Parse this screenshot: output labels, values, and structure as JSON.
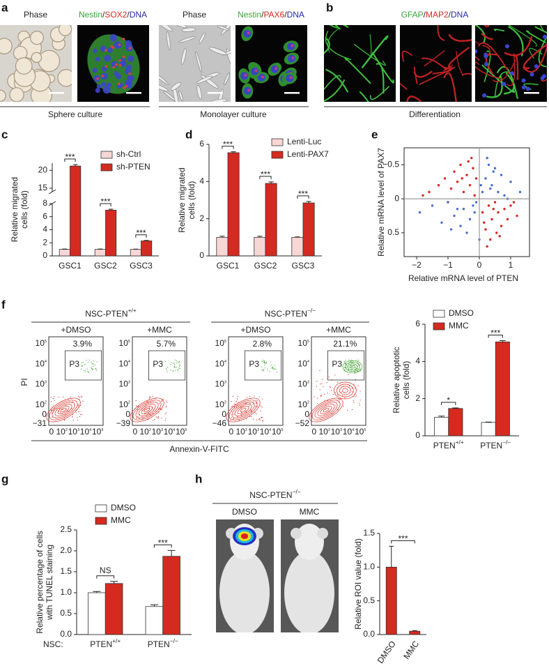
{
  "panel_labels": [
    "a",
    "b",
    "c",
    "d",
    "e",
    "f",
    "g",
    "h"
  ],
  "panel_a": {
    "images": [
      {
        "label": [
          {
            "text": "Phase",
            "color": "#222222"
          }
        ]
      },
      {
        "label": [
          {
            "text": "Nestin",
            "color": "#3aa33a"
          },
          {
            "text": "/",
            "color": "#222222"
          },
          {
            "text": "SOX2",
            "color": "#d42a20"
          },
          {
            "text": "/",
            "color": "#222222"
          },
          {
            "text": "DNA",
            "color": "#2a2aa8"
          }
        ]
      },
      {
        "label": [
          {
            "text": "Phase",
            "color": "#222222"
          }
        ]
      },
      {
        "label": [
          {
            "text": "Nestin",
            "color": "#3aa33a"
          },
          {
            "text": "/",
            "color": "#222222"
          },
          {
            "text": "PAX6",
            "color": "#d42a20"
          },
          {
            "text": "/",
            "color": "#222222"
          },
          {
            "text": "DNA",
            "color": "#2a2aa8"
          }
        ]
      }
    ],
    "captions": [
      "Sphere culture",
      "Monolayer culture"
    ]
  },
  "panel_b": {
    "label": [
      {
        "text": "GFAP",
        "color": "#3aa33a"
      },
      {
        "text": "/",
        "color": "#222222"
      },
      {
        "text": "MAP2",
        "color": "#d42a20"
      },
      {
        "text": "/",
        "color": "#222222"
      },
      {
        "text": "DNA",
        "color": "#2a2aa8"
      }
    ],
    "caption": "Differentiation"
  },
  "chart_data": [
    {
      "type": "bar",
      "ylabel": [
        "Relative migrated",
        "cells (fold)"
      ],
      "categories": [
        "GSC1",
        "GSC2",
        "GSC3"
      ],
      "series": [
        {
          "name": "sh-Ctrl",
          "color": "#f7d6d6",
          "values": [
            1,
            1,
            1
          ],
          "errors": [
            0.05,
            0.06,
            0.04
          ]
        },
        {
          "name": "sh-PTEN",
          "color": "#d42a20",
          "values": [
            21.2,
            7.0,
            2.3
          ],
          "errors": [
            0.4,
            0.15,
            0.08
          ]
        }
      ],
      "significance": [
        "***",
        "***",
        "***"
      ],
      "ylim": [
        0,
        22
      ],
      "y_break": [
        8,
        14
      ],
      "yticks": [
        0,
        2,
        4,
        6,
        8,
        15,
        20
      ]
    },
    {
      "type": "bar",
      "ylabel": [
        "Relative migrated",
        "cells (fold)"
      ],
      "categories": [
        "GSC1",
        "GSC2",
        "GSC3"
      ],
      "series": [
        {
          "name": "Lenti-Luc",
          "color": "#f7d6d6",
          "values": [
            1.0,
            1.0,
            1.0
          ],
          "errors": [
            0.06,
            0.06,
            0.02
          ]
        },
        {
          "name": "Lenti-PAX7",
          "color": "#d42a20",
          "values": [
            5.55,
            3.9,
            2.85
          ],
          "errors": [
            0.05,
            0.08,
            0.08
          ]
        }
      ],
      "significance": [
        "***",
        "***",
        "***"
      ],
      "ylim": [
        0,
        6
      ],
      "yticks": [
        0,
        2,
        4,
        6
      ]
    },
    {
      "type": "scatter",
      "xlabel": "Relative mRNA level of PTEN",
      "ylabel": [
        "Relative mRNA level of PAX7"
      ],
      "xlim": [
        -2.4,
        1.6
      ],
      "ylim": [
        0.85,
        -0.75
      ],
      "xticks": [
        {
          "value": -2,
          "label": "−2"
        },
        {
          "value": -1,
          "label": "−1"
        },
        0,
        1
      ],
      "yticks": [
        {
          "value": -0.5,
          "label": "−0.5"
        },
        0,
        0.5
      ],
      "zero_lines": true,
      "series": [
        {
          "color": "#d42a20",
          "x": [
            -1.6,
            -1.3,
            -1.1,
            -0.9,
            -0.8,
            -0.7,
            -0.6,
            -0.5,
            -0.4,
            -0.35,
            -0.3,
            -0.2,
            -0.15,
            -0.1,
            -1.8,
            -0.55,
            -0.25,
            -1.0,
            0.1,
            0.2,
            0.3,
            0.35,
            0.4,
            0.5,
            0.55,
            0.6,
            0.7,
            0.8,
            0.9,
            1.0,
            1.2,
            0.25,
            0.45,
            0.15,
            0.65,
            1.1
          ],
          "y": [
            -0.1,
            -0.2,
            -0.3,
            -0.15,
            -0.4,
            -0.25,
            -0.5,
            -0.1,
            -0.35,
            -0.55,
            -0.2,
            -0.45,
            -0.05,
            -0.3,
            -0.05,
            -0.3,
            -0.6,
            0.05,
            0.2,
            0.45,
            0.1,
            0.6,
            0.3,
            0.05,
            0.5,
            0.2,
            0.4,
            0.15,
            0.3,
            0.1,
            0.25,
            0.7,
            0.15,
            0.35,
            0.55,
            0.05
          ]
        },
        {
          "color": "#4a6fd0",
          "x": [
            -1.9,
            -1.5,
            -1.2,
            -1.0,
            -0.8,
            -0.6,
            -0.5,
            -0.3,
            -0.2,
            -0.1,
            0.0,
            0.1,
            0.2,
            0.3,
            0.4,
            0.5,
            0.6,
            0.7,
            0.8,
            1.0,
            1.3,
            -0.4,
            -0.7,
            0.25,
            0.45,
            0.9,
            -0.15,
            0.05,
            0.35,
            -0.9
          ],
          "y": [
            0.2,
            0.1,
            0.35,
            0.05,
            0.25,
            0.4,
            0.15,
            0.3,
            0.1,
            0.05,
            0.6,
            -0.1,
            -0.3,
            -0.5,
            -0.2,
            -0.45,
            -0.1,
            -0.35,
            -0.05,
            -0.25,
            -0.1,
            0.5,
            0.15,
            -0.6,
            -0.4,
            0.0,
            0.2,
            -0.2,
            -0.15,
            0.45
          ]
        }
      ]
    },
    {
      "type": "bar",
      "ylabel": [
        "Relative apoptotic",
        "cells (fold)"
      ],
      "categories": [
        "PTEN",
        "PTEN"
      ],
      "category_superscripts": [
        "+/+",
        "−/−"
      ],
      "series": [
        {
          "name": "DMSO",
          "color": "#ffffff",
          "values": [
            1.0,
            0.72
          ],
          "errors": [
            0.06,
            0.02
          ]
        },
        {
          "name": "MMC",
          "color": "#d42a20",
          "values": [
            1.47,
            5.05
          ],
          "errors": [
            0.03,
            0.07
          ]
        }
      ],
      "significance": [
        "*",
        "***"
      ],
      "ylim": [
        0,
        6
      ],
      "yticks": [
        0,
        2,
        4,
        6
      ]
    },
    {
      "type": "bar",
      "ylabel": [
        "Relative percentage of cells",
        "with TUNEL staining"
      ],
      "category_prefix": "NSC:",
      "categories": [
        "PTEN",
        "PTEN"
      ],
      "category_superscripts": [
        "+/+",
        "−/−"
      ],
      "series": [
        {
          "name": "DMSO",
          "color": "#ffffff",
          "values": [
            1.0,
            0.67
          ],
          "errors": [
            0.03,
            0.04
          ]
        },
        {
          "name": "MMC",
          "color": "#d42a20",
          "values": [
            1.22,
            1.87
          ],
          "errors": [
            0.05,
            0.14
          ]
        }
      ],
      "significance": [
        "NS",
        "***"
      ],
      "ylim": [
        0,
        2.5
      ],
      "yticks": [
        {
          "value": 0,
          "label": "0.0"
        },
        0.5,
        {
          "value": 1,
          "label": "1.0"
        },
        1.5,
        {
          "value": 2,
          "label": "2.0"
        },
        2.5
      ]
    },
    {
      "type": "bar",
      "ylabel": [
        "Relative ROI value (fold)"
      ],
      "categories": [
        "DMSO",
        "MMC"
      ],
      "series": [
        {
          "color": "#d42a20",
          "values": [
            1.0,
            0.05
          ],
          "errors": [
            0.31,
            0.01
          ]
        }
      ],
      "significance": [
        "***"
      ],
      "ylim": [
        0,
        1.5
      ],
      "yticks": [
        {
          "value": 0,
          "label": "0.0"
        },
        0.5,
        {
          "value": 1,
          "label": "1.0"
        },
        1.5
      ]
    }
  ],
  "panel_f_flow": {
    "y_label": "PI",
    "x_label": "Annexin-V-FITC",
    "gate": "P3",
    "yticks": [
      {
        "base": "10",
        "sup": "5"
      },
      {
        "base": "10",
        "sup": "4"
      },
      {
        "base": "10",
        "sup": "3"
      },
      {
        "base": "10",
        "sup": "2"
      },
      "0"
    ],
    "xticks": [
      "0",
      {
        "base": "10",
        "sup": "2"
      },
      {
        "base": "10",
        "sup": "3"
      },
      {
        "base": "10",
        "sup": "4"
      },
      {
        "base": "10",
        "sup": "5"
      }
    ],
    "groups": [
      {
        "title": "NSC-PTEN",
        "title_sup": "+/+",
        "plots": [
          {
            "condition": "+DMSO",
            "percent": "3.9%",
            "ymin": "−31"
          },
          {
            "condition": "+MMC",
            "percent": "5.7%",
            "ymin": "−39"
          }
        ]
      },
      {
        "title": "NSC-PTEN",
        "title_sup": "−/−",
        "plots": [
          {
            "condition": "+DMSO",
            "percent": "2.8%",
            "ymin": "−46"
          },
          {
            "condition": "+MMC",
            "percent": "21.1%",
            "ymin": "−52"
          }
        ]
      }
    ]
  },
  "panel_h_images": {
    "title": "NSC-PTEN",
    "title_sup": "−/−",
    "conditions": [
      "DMSO",
      "MMC"
    ]
  }
}
